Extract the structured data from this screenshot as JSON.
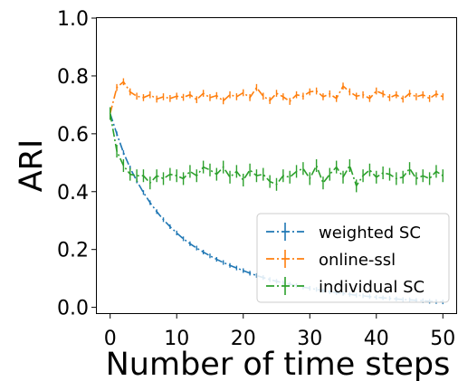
{
  "chart_data": {
    "type": "line",
    "xlabel": "Number of time steps",
    "ylabel": "ARI",
    "xlim": [
      -2,
      52
    ],
    "ylim": [
      -0.02,
      1.0
    ],
    "xticks": [
      "0",
      "10",
      "20",
      "30",
      "40",
      "50"
    ],
    "yticks": [
      "0.0",
      "0.2",
      "0.4",
      "0.6",
      "0.8",
      "1.0"
    ],
    "grid": false,
    "legend_position": "lower-right",
    "error_bars": true,
    "x": [
      0,
      1,
      2,
      3,
      4,
      5,
      6,
      7,
      8,
      9,
      10,
      11,
      12,
      13,
      14,
      15,
      16,
      17,
      18,
      19,
      20,
      21,
      22,
      23,
      24,
      25,
      26,
      27,
      28,
      29,
      30,
      31,
      32,
      33,
      34,
      35,
      36,
      37,
      38,
      39,
      40,
      41,
      42,
      43,
      44,
      45,
      46,
      47,
      48,
      49,
      50
    ],
    "series": [
      {
        "name": "weighted SC",
        "color": "#1f77b4",
        "linestyle": "dashdot",
        "values": [
          0.67,
          0.6,
          0.535,
          0.482,
          0.437,
          0.397,
          0.362,
          0.331,
          0.303,
          0.279,
          0.257,
          0.237,
          0.22,
          0.205,
          0.191,
          0.178,
          0.166,
          0.155,
          0.145,
          0.136,
          0.127,
          0.118,
          0.11,
          0.103,
          0.096,
          0.09,
          0.085,
          0.08,
          0.075,
          0.07,
          0.066,
          0.062,
          0.058,
          0.054,
          0.051,
          0.048,
          0.045,
          0.042,
          0.04,
          0.037,
          0.035,
          0.033,
          0.031,
          0.029,
          0.027,
          0.026,
          0.024,
          0.023,
          0.021,
          0.02,
          0.019
        ],
        "errors": 0.008
      },
      {
        "name": "online-ssl",
        "color": "#ff7f0e",
        "linestyle": "dashdot",
        "values": [
          0.67,
          0.76,
          0.78,
          0.745,
          0.73,
          0.725,
          0.735,
          0.72,
          0.728,
          0.722,
          0.73,
          0.726,
          0.735,
          0.718,
          0.74,
          0.725,
          0.732,
          0.714,
          0.735,
          0.728,
          0.742,
          0.725,
          0.76,
          0.73,
          0.715,
          0.74,
          0.728,
          0.712,
          0.735,
          0.73,
          0.745,
          0.748,
          0.728,
          0.738,
          0.722,
          0.765,
          0.745,
          0.73,
          0.735,
          0.722,
          0.748,
          0.738,
          0.725,
          0.735,
          0.72,
          0.74,
          0.728,
          0.735,
          0.722,
          0.738,
          0.728
        ],
        "errors": 0.012
      },
      {
        "name": "individual SC",
        "color": "#2ca02c",
        "linestyle": "dashdot",
        "values": [
          0.67,
          0.54,
          0.49,
          0.46,
          0.455,
          0.455,
          0.43,
          0.455,
          0.445,
          0.46,
          0.455,
          0.445,
          0.47,
          0.455,
          0.485,
          0.475,
          0.46,
          0.485,
          0.45,
          0.47,
          0.44,
          0.475,
          0.455,
          0.46,
          0.435,
          0.425,
          0.455,
          0.45,
          0.47,
          0.48,
          0.445,
          0.49,
          0.43,
          0.46,
          0.485,
          0.45,
          0.49,
          0.42,
          0.455,
          0.475,
          0.45,
          0.465,
          0.46,
          0.445,
          0.45,
          0.48,
          0.445,
          0.455,
          0.445,
          0.47,
          0.455
        ],
        "errors": 0.022
      }
    ]
  }
}
